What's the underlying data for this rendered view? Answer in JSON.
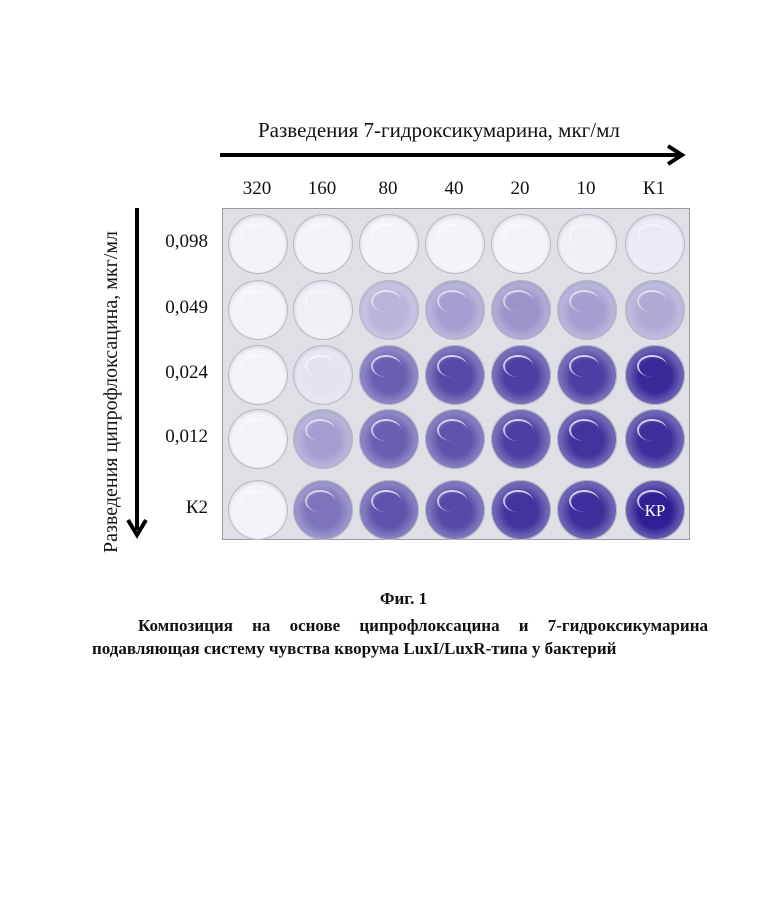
{
  "figure": {
    "x_axis_title": "Разведения 7-гидроксикумарина, мкг/мл",
    "y_axis_title": "Разведения ципрофлоксацина, мкг/мл",
    "columns": [
      "320",
      "160",
      "80",
      "40",
      "20",
      "10",
      "К1"
    ],
    "rows": [
      "0,098",
      "0,049",
      "0,024",
      "0,012",
      "К2"
    ],
    "well_marker": "КР",
    "well_intensity": [
      [
        0.0,
        0.0,
        0.0,
        0.0,
        0.0,
        0.02,
        0.05
      ],
      [
        0.0,
        0.02,
        0.3,
        0.4,
        0.45,
        0.4,
        0.35
      ],
      [
        0.0,
        0.08,
        0.7,
        0.8,
        0.85,
        0.85,
        0.95
      ],
      [
        0.0,
        0.4,
        0.7,
        0.75,
        0.85,
        0.9,
        0.92
      ],
      [
        0.0,
        0.6,
        0.75,
        0.8,
        0.9,
        0.92,
        1.0
      ]
    ],
    "colors": {
      "stain": "#2e1f94",
      "clear_well": "#f3f4f8",
      "plate": "#dfe0e6"
    }
  },
  "caption": {
    "figure_label": "Фиг. 1",
    "line1": "Композиция на основе ципрофлоксацина и 7-гидроксикумарина",
    "line2": "подавляющая систему чувства кворума LuxI/LuxR-типа у бактерий"
  }
}
